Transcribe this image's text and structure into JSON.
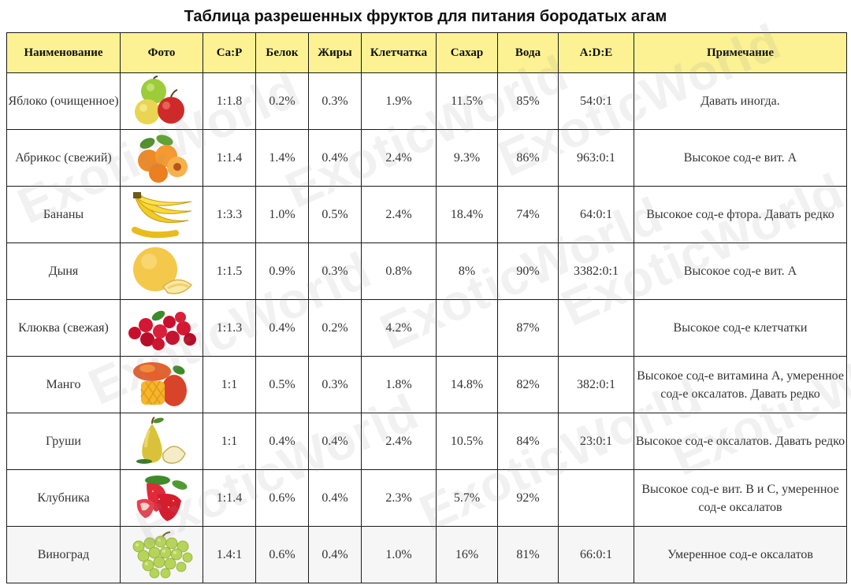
{
  "title": "Таблица разрешенных фруктов для питания бородатых агам",
  "watermark": "ExoticWorld",
  "columns": [
    "Наименование",
    "Фото",
    "Ca:P",
    "Белок",
    "Жиры",
    "Клетчатка",
    "Сахар",
    "Вода",
    "A:D:E",
    "Примечание"
  ],
  "rows": [
    {
      "name": "Яблоко (очищенное)",
      "photo": "apple-icon",
      "cap": "1:1.8",
      "protein": "0.2%",
      "fat": "0.3%",
      "fiber": "1.9%",
      "sugar": "11.5%",
      "water": "85%",
      "ade": "54:0:1",
      "note": "Давать иногда."
    },
    {
      "name": "Абрикос (свежий)",
      "photo": "apricot-icon",
      "cap": "1:1.4",
      "protein": "1.4%",
      "fat": "0.4%",
      "fiber": "2.4%",
      "sugar": "9.3%",
      "water": "86%",
      "ade": "963:0:1",
      "note": "Высокое сод-е вит. А"
    },
    {
      "name": "Бананы",
      "photo": "banana-icon",
      "cap": "1:3.3",
      "protein": "1.0%",
      "fat": "0.5%",
      "fiber": "2.4%",
      "sugar": "18.4%",
      "water": "74%",
      "ade": "64:0:1",
      "note": "Высокое сод-е фтора. Давать редко"
    },
    {
      "name": "Дыня",
      "photo": "melon-icon",
      "cap": "1:1.5",
      "protein": "0.9%",
      "fat": "0.3%",
      "fiber": "0.8%",
      "sugar": "8%",
      "water": "90%",
      "ade": "3382:0:1",
      "note": "Высокое сод-е вит. А"
    },
    {
      "name": "Клюква (свежая)",
      "photo": "cranberry-icon",
      "cap": "1:1.3",
      "protein": "0.4%",
      "fat": "0.2%",
      "fiber": "4.2%",
      "sugar": "",
      "water": "87%",
      "ade": "",
      "note": "Высокое сод-е клетчатки"
    },
    {
      "name": "Манго",
      "photo": "mango-icon",
      "cap": "1:1",
      "protein": "0.5%",
      "fat": "0.3%",
      "fiber": "1.8%",
      "sugar": "14.8%",
      "water": "82%",
      "ade": "382:0:1",
      "note": "Высокое сод-е витамина А, умеренное сод-е оксалатов. Давать редко"
    },
    {
      "name": "Груши",
      "photo": "pear-icon",
      "cap": "1:1",
      "protein": "0.4%",
      "fat": "0.4%",
      "fiber": "2.4%",
      "sugar": "10.5%",
      "water": "84%",
      "ade": "23:0:1",
      "note": "Высокое сод-е оксалатов. Давать редко"
    },
    {
      "name": "Клубника",
      "photo": "strawberry-icon",
      "cap": "1:1.4",
      "protein": "0.6%",
      "fat": "0.4%",
      "fiber": "2.3%",
      "sugar": "5.7%",
      "water": "92%",
      "ade": "",
      "note": "Высокое сод-е вит. В и С, умеренное сод-е оксалатов"
    },
    {
      "name": "Виноград",
      "photo": "grapes-icon",
      "cap": "1.4:1",
      "protein": "0.6%",
      "fat": "0.4%",
      "fiber": "1.0%",
      "sugar": "16%",
      "water": "81%",
      "ade": "66:0:1",
      "note": "Умеренное сод-е оксалатов"
    }
  ]
}
